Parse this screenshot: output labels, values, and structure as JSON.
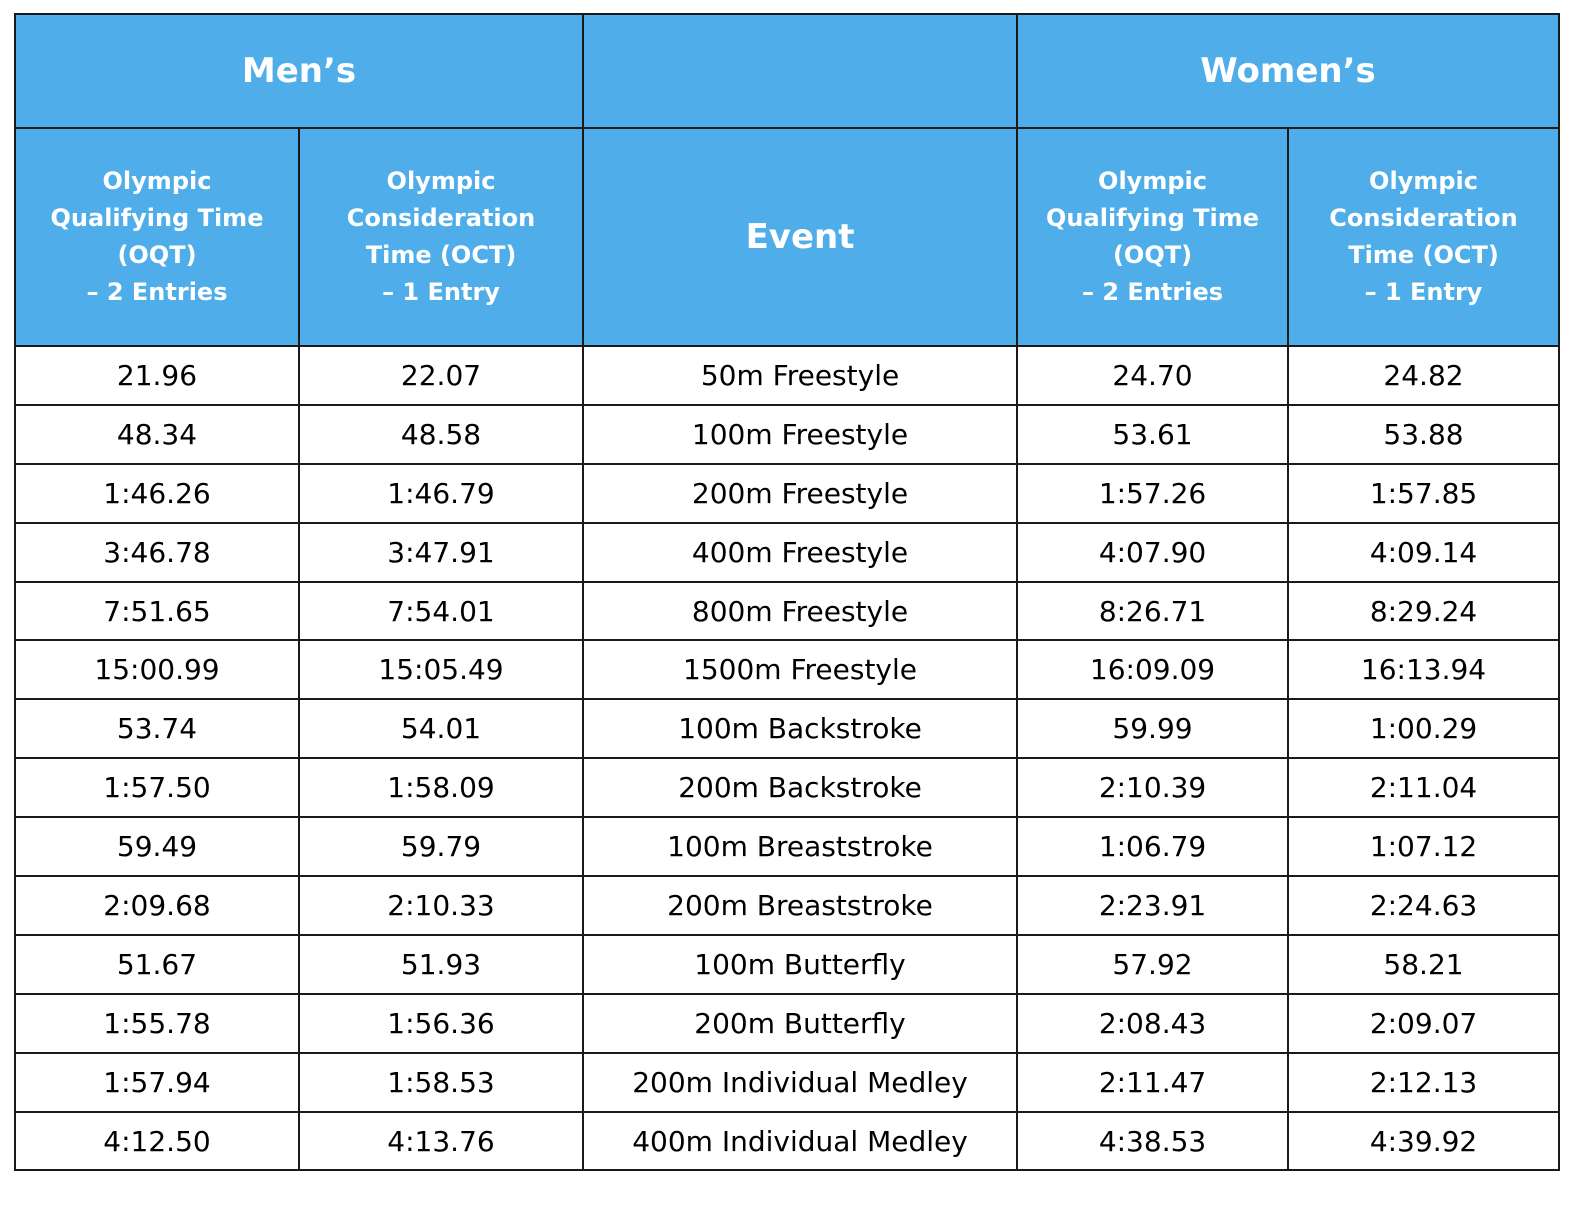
{
  "header": {
    "mens_label": "Men’s",
    "womens_label": "Women’s",
    "event_label": "Event",
    "oqt_lines": [
      "Olympic",
      "Qualifying Time",
      "(OQT)",
      "– 2 Entries"
    ],
    "oct_lines": [
      "Olympic",
      "Consideration",
      "Time (OCT)",
      "– 1 Entry"
    ]
  },
  "colors": {
    "header_background": "#4faee9",
    "header_text": "#ffffff",
    "border": "#1a1a1a"
  },
  "rows": [
    {
      "men_oqt": "21.96",
      "men_oct": "22.07",
      "event": "50m Freestyle",
      "women_oqt": "24.70",
      "women_oct": "24.82"
    },
    {
      "men_oqt": "48.34",
      "men_oct": "48.58",
      "event": "100m Freestyle",
      "women_oqt": "53.61",
      "women_oct": "53.88"
    },
    {
      "men_oqt": "1:46.26",
      "men_oct": "1:46.79",
      "event": "200m Freestyle",
      "women_oqt": "1:57.26",
      "women_oct": "1:57.85"
    },
    {
      "men_oqt": "3:46.78",
      "men_oct": "3:47.91",
      "event": "400m Freestyle",
      "women_oqt": "4:07.90",
      "women_oct": "4:09.14"
    },
    {
      "men_oqt": "7:51.65",
      "men_oct": "7:54.01",
      "event": "800m Freestyle",
      "women_oqt": "8:26.71",
      "women_oct": "8:29.24"
    },
    {
      "men_oqt": "15:00.99",
      "men_oct": "15:05.49",
      "event": "1500m Freestyle",
      "women_oqt": "16:09.09",
      "women_oct": "16:13.94"
    },
    {
      "men_oqt": "53.74",
      "men_oct": "54.01",
      "event": "100m Backstroke",
      "women_oqt": "59.99",
      "women_oct": "1:00.29"
    },
    {
      "men_oqt": "1:57.50",
      "men_oct": "1:58.09",
      "event": "200m Backstroke",
      "women_oqt": "2:10.39",
      "women_oct": "2:11.04"
    },
    {
      "men_oqt": "59.49",
      "men_oct": "59.79",
      "event": "100m Breaststroke",
      "women_oqt": "1:06.79",
      "women_oct": "1:07.12"
    },
    {
      "men_oqt": "2:09.68",
      "men_oct": "2:10.33",
      "event": "200m Breaststroke",
      "women_oqt": "2:23.91",
      "women_oct": "2:24.63"
    },
    {
      "men_oqt": "51.67",
      "men_oct": "51.93",
      "event": "100m Butterfly",
      "women_oqt": "57.92",
      "women_oct": "58.21"
    },
    {
      "men_oqt": "1:55.78",
      "men_oct": "1:56.36",
      "event": "200m Butterfly",
      "women_oqt": "2:08.43",
      "women_oct": "2:09.07"
    },
    {
      "men_oqt": "1:57.94",
      "men_oct": "1:58.53",
      "event": "200m Individual Medley",
      "women_oqt": "2:11.47",
      "women_oct": "2:12.13"
    },
    {
      "men_oqt": "4:12.50",
      "men_oct": "4:13.76",
      "event": "400m Individual Medley",
      "women_oqt": "4:38.53",
      "women_oct": "4:39.92"
    }
  ]
}
